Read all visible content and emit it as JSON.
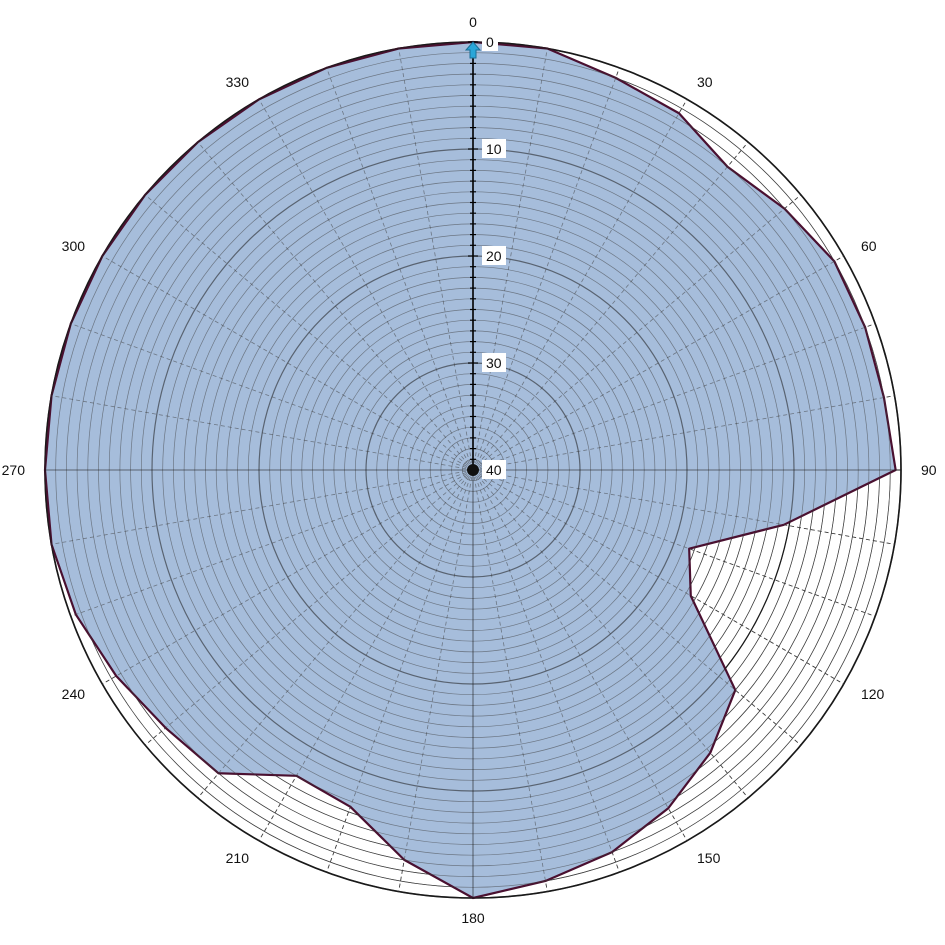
{
  "chart_data": {
    "type": "area",
    "subtype": "polar",
    "angle_axis": {
      "direction": "clockwise",
      "zero_at": "top",
      "tick_labels": [
        "0",
        "30",
        "60",
        "90",
        "120",
        "150",
        "180",
        "210",
        "240",
        "270",
        "300",
        "330"
      ],
      "tick_values": [
        0,
        30,
        60,
        90,
        120,
        150,
        180,
        210,
        240,
        270,
        300,
        330
      ],
      "spoke_step_deg": 10
    },
    "radial_axis": {
      "reversed": true,
      "range": [
        0,
        40
      ],
      "tick_labels": [
        "0",
        "10",
        "20",
        "30",
        "40"
      ],
      "tick_values": [
        0,
        10,
        20,
        30,
        40
      ],
      "minor_step": 1,
      "grid": true
    },
    "series": [
      {
        "angles": [
          0,
          10,
          20,
          30,
          40,
          50,
          60,
          70,
          80,
          90,
          100,
          110,
          120,
          130,
          140,
          150,
          160,
          170,
          180,
          190,
          200,
          210,
          220,
          230,
          240,
          250,
          260,
          270,
          280,
          290,
          300,
          310,
          320,
          330,
          340,
          350
        ],
        "values": [
          0,
          0,
          1,
          1.5,
          3,
          2,
          1,
          1,
          1,
          0.5,
          10.5,
          18.5,
          16.5,
          8,
          5.5,
          3.5,
          2,
          1,
          0,
          3,
          6.5,
          7,
          3,
          2.5,
          1.5,
          0.5,
          0,
          0,
          0,
          0,
          0,
          0,
          0,
          0,
          0,
          0
        ],
        "fill_color": "#a6bddb",
        "line_color": "#4a1030"
      }
    ],
    "colors": {
      "fill": "#a6bddb",
      "outline": "#4a1030",
      "major_grid": "#1a1a1a",
      "minor_grid": "#3c3c3c",
      "marker": "#29a6d8"
    },
    "marker_icon": "up-arrow-icon"
  }
}
